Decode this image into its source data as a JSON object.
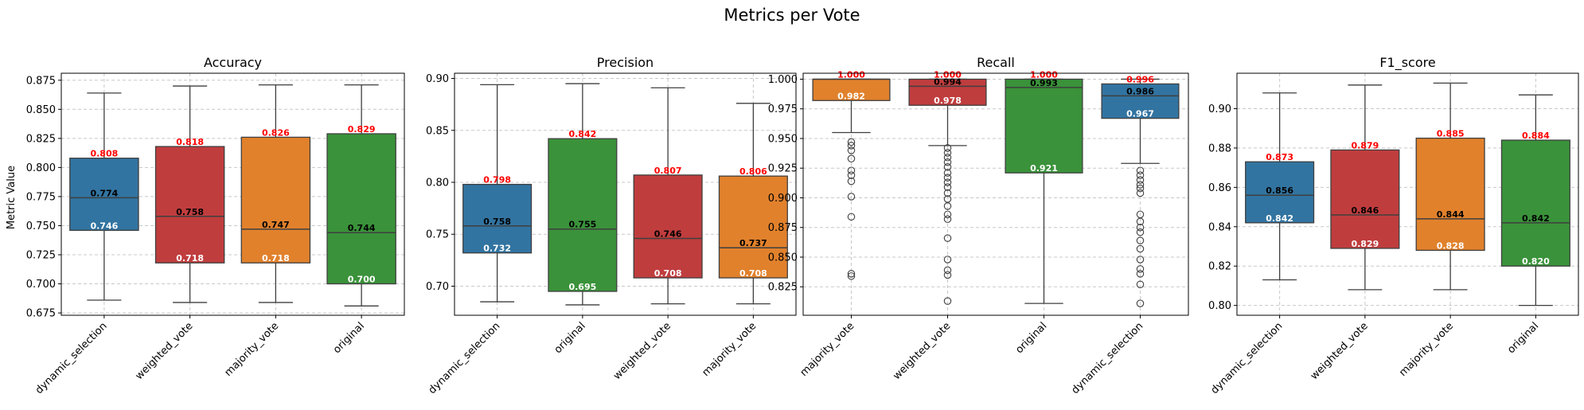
{
  "figure": {
    "title": "Metrics per Vote",
    "ylabel": "Metric Value"
  },
  "colors": {
    "dynamic_selection": "#3274a1",
    "weighted_vote": "#c03d3e",
    "majority_vote": "#e1812c",
    "original": "#3a923a",
    "q3_label": "#ff0000",
    "median_label": "#000000",
    "q1_label": "#ffffff"
  },
  "chart_data": [
    {
      "type": "box",
      "title": "Accuracy",
      "ylim": [
        0.673,
        0.881
      ],
      "yticks": [
        0.675,
        0.7,
        0.725,
        0.75,
        0.775,
        0.8,
        0.825,
        0.85,
        0.875
      ],
      "grid": true,
      "categories": [
        "dynamic_selection",
        "weighted_vote",
        "majority_vote",
        "original"
      ],
      "boxes": [
        {
          "name": "dynamic_selection",
          "whislo": 0.686,
          "q1": 0.746,
          "med": 0.774,
          "q3": 0.808,
          "whishi": 0.864,
          "fliers": []
        },
        {
          "name": "weighted_vote",
          "whislo": 0.684,
          "q1": 0.718,
          "med": 0.758,
          "q3": 0.818,
          "whishi": 0.87,
          "fliers": []
        },
        {
          "name": "majority_vote",
          "whislo": 0.684,
          "q1": 0.718,
          "med": 0.747,
          "q3": 0.826,
          "whishi": 0.871,
          "fliers": []
        },
        {
          "name": "original",
          "whislo": 0.681,
          "q1": 0.7,
          "med": 0.744,
          "q3": 0.829,
          "whishi": 0.871,
          "fliers": []
        }
      ]
    },
    {
      "type": "box",
      "title": "Precision",
      "ylim": [
        0.672,
        0.905
      ],
      "yticks": [
        0.7,
        0.75,
        0.8,
        0.85,
        0.9
      ],
      "grid": true,
      "categories": [
        "dynamic_selection",
        "original",
        "weighted_vote",
        "majority_vote"
      ],
      "boxes": [
        {
          "name": "dynamic_selection",
          "whislo": 0.685,
          "q1": 0.732,
          "med": 0.758,
          "q3": 0.798,
          "whishi": 0.894,
          "fliers": []
        },
        {
          "name": "original",
          "whislo": 0.682,
          "q1": 0.695,
          "med": 0.755,
          "q3": 0.842,
          "whishi": 0.895,
          "fliers": []
        },
        {
          "name": "weighted_vote",
          "whislo": 0.683,
          "q1": 0.708,
          "med": 0.746,
          "q3": 0.807,
          "whishi": 0.891,
          "fliers": []
        },
        {
          "name": "majority_vote",
          "whislo": 0.683,
          "q1": 0.708,
          "med": 0.737,
          "q3": 0.806,
          "whishi": 0.876,
          "fliers": []
        }
      ]
    },
    {
      "type": "box",
      "title": "Recall",
      "ylim": [
        0.801,
        1.005
      ],
      "yticks": [
        0.825,
        0.85,
        0.875,
        0.9,
        0.925,
        0.95,
        0.975,
        1.0
      ],
      "grid": true,
      "categories": [
        "majority_vote",
        "weighted_vote",
        "original",
        "dynamic_selection"
      ],
      "boxes": [
        {
          "name": "majority_vote",
          "whislo": 0.955,
          "q1": 0.982,
          "med": 1.0,
          "q3": 1.0,
          "whishi": 1.0,
          "fliers": [
            0.947,
            0.944,
            0.94,
            0.933,
            0.923,
            0.919,
            0.914,
            0.901,
            0.884,
            0.836,
            0.834
          ]
        },
        {
          "name": "weighted_vote",
          "whislo": 0.944,
          "q1": 0.978,
          "med": 0.994,
          "q3": 1.0,
          "whishi": 1.0,
          "fliers": [
            0.942,
            0.938,
            0.934,
            0.93,
            0.926,
            0.921,
            0.917,
            0.913,
            0.909,
            0.904,
            0.899,
            0.893,
            0.886,
            0.882,
            0.866,
            0.848,
            0.839,
            0.835,
            0.813
          ]
        },
        {
          "name": "original",
          "whislo": 0.811,
          "q1": 0.921,
          "med": 0.993,
          "q3": 1.0,
          "whishi": 1.0,
          "fliers": []
        },
        {
          "name": "dynamic_selection",
          "whislo": 0.929,
          "q1": 0.967,
          "med": 0.986,
          "q3": 0.996,
          "whishi": 1.0,
          "fliers": [
            0.923,
            0.919,
            0.915,
            0.911,
            0.908,
            0.904,
            0.886,
            0.88,
            0.875,
            0.871,
            0.864,
            0.857,
            0.848,
            0.84,
            0.836,
            0.827,
            0.811
          ]
        }
      ],
      "labels": {
        "majority_vote": {
          "q3": "1.000",
          "med": "",
          "q1": "0.982"
        },
        "weighted_vote": {
          "q3": "1.000",
          "med": "0.994",
          "q1": "0.978"
        },
        "original": {
          "q3": "1.000",
          "med": "0.993",
          "q1": "0.921"
        },
        "dynamic_selection": {
          "q3": "0.996",
          "med": "0.986",
          "q1": "0.967"
        }
      }
    },
    {
      "type": "box",
      "title": "F1_score",
      "ylim": [
        0.795,
        0.918
      ],
      "yticks": [
        0.8,
        0.82,
        0.84,
        0.86,
        0.88,
        0.9
      ],
      "grid": true,
      "categories": [
        "dynamic_selection",
        "weighted_vote",
        "majority_vote",
        "original"
      ],
      "boxes": [
        {
          "name": "dynamic_selection",
          "whislo": 0.813,
          "q1": 0.842,
          "med": 0.856,
          "q3": 0.873,
          "whishi": 0.908,
          "fliers": []
        },
        {
          "name": "weighted_vote",
          "whislo": 0.808,
          "q1": 0.829,
          "med": 0.846,
          "q3": 0.879,
          "whishi": 0.912,
          "fliers": []
        },
        {
          "name": "majority_vote",
          "whislo": 0.808,
          "q1": 0.828,
          "med": 0.844,
          "q3": 0.885,
          "whishi": 0.913,
          "fliers": []
        },
        {
          "name": "original",
          "whislo": 0.8,
          "q1": 0.82,
          "med": 0.842,
          "q3": 0.884,
          "whishi": 0.907,
          "fliers": []
        }
      ]
    }
  ]
}
